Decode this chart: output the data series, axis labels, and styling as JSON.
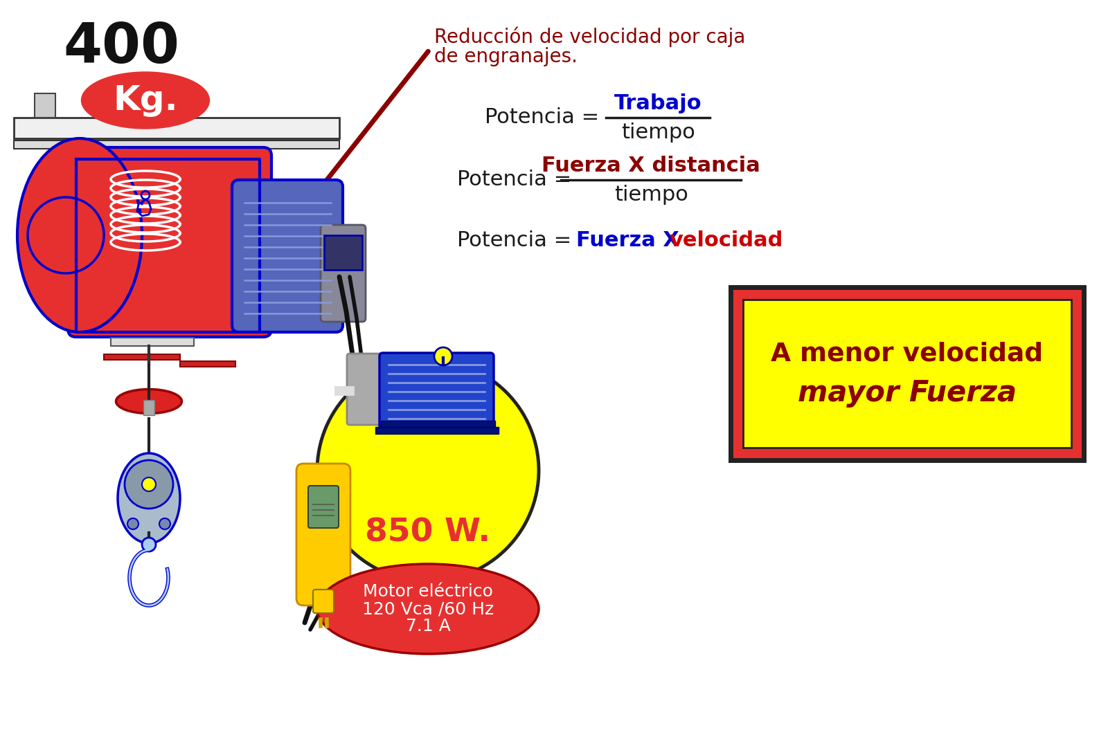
{
  "bg_color": "#ffffff",
  "title_number": "400",
  "title_number_color": "#111111",
  "kg_text": "Kg.",
  "kg_ellipse_color": "#e63030",
  "kg_text_color": "#ffffff",
  "reduction_text_line1": "Reducción de velocidad por caja",
  "reduction_text_line2": "de engranajes.",
  "reduction_color": "#8b0000",
  "dark_color": "#1a1a1a",
  "blue_color": "#0000cd",
  "red_color": "#cc0000",
  "dark_red": "#8b0000",
  "watt_text": "850 W.",
  "watt_color": "#e63030",
  "motor_label1": "Motor eléctrico",
  "motor_label2": "120 Vca /60 Hz",
  "motor_label3": "7.1 A",
  "motor_ellipse_color": "#e63030",
  "motor_text_color": "#ffffff",
  "yellow_circle_color": "#ffff00",
  "box_outer_color": "#e63030",
  "box_inner_color": "#ffff00",
  "box_text1": "A menor velocidad",
  "box_text2": "mayor Fuerza",
  "box_text_color": "#8b0000",
  "hoist_red": "#e63030",
  "hoist_blue": "#0000cc",
  "hoist_gray": "#888888",
  "hoist_darkgray": "#555555",
  "hoist_lightgray": "#cccccc",
  "cable_color": "#111111",
  "remote_yellow": "#ffcc00"
}
